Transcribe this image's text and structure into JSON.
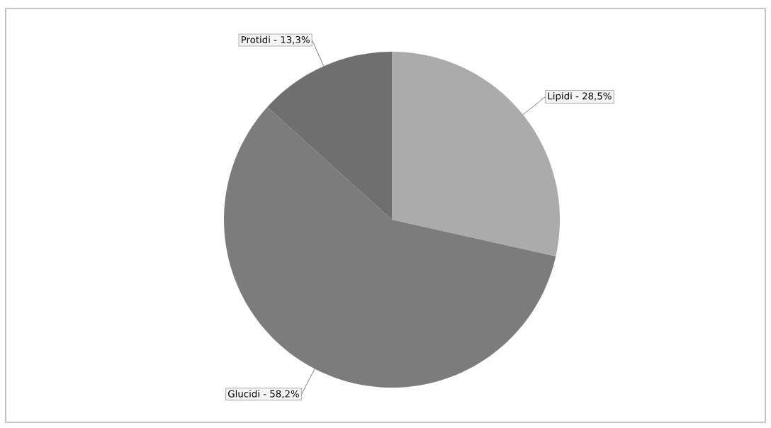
{
  "chart_data": {
    "type": "pie",
    "categories": [
      "Lipidi - 28,5%",
      "Glucidi - 58,2%",
      "Protidi - 13,3%"
    ],
    "values": [
      28.5,
      58.2,
      13.3
    ],
    "colors": [
      "#ababab",
      "#7c7c7c",
      "#6f6f6f"
    ]
  }
}
